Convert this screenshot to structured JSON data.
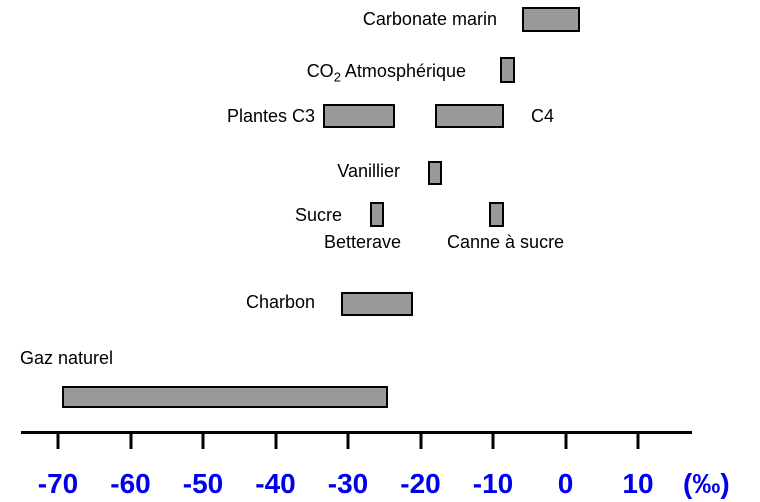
{
  "chart_data": {
    "type": "bar",
    "subtype": "horizontal-range-bars",
    "title": "",
    "xlabel": "(‰)",
    "axis": {
      "ticks": [
        -70,
        -60,
        -50,
        -40,
        -30,
        -20,
        -10,
        0,
        10
      ],
      "unit_label": "(‰)",
      "axis_line_value_span": [
        -75,
        17.5
      ],
      "grid": false
    },
    "items": [
      {
        "name": "carbonate-marin",
        "label": "Carbonate marin",
        "range_permil": [
          -6,
          2
        ]
      },
      {
        "name": "co2-atmospherique",
        "label_pre": "CO",
        "label_sub": "2",
        "label_post": " Atmosphérique",
        "range_permil": [
          -9,
          -7
        ]
      },
      {
        "name": "plantes-c3",
        "label": "Plantes C3",
        "range_permil": [
          -33.5,
          -23.5
        ]
      },
      {
        "name": "plantes-c4",
        "label": "C4",
        "range_permil": [
          -18,
          -8.5
        ]
      },
      {
        "name": "vanillier",
        "label": "Vanillier",
        "range_permil": [
          -19,
          -17
        ]
      },
      {
        "name": "sucre-betterave",
        "label": "Sucre",
        "sublabel": "Betterave",
        "range_permil": [
          -27,
          -25
        ]
      },
      {
        "name": "sucre-canne",
        "sublabel": "Canne à sucre",
        "range_permil": [
          -10.5,
          -8.5
        ]
      },
      {
        "name": "charbon",
        "label": "Charbon",
        "range_permil": [
          -31,
          -21
        ]
      },
      {
        "name": "gaz-naturel",
        "label": "Gaz naturel",
        "range_permil": [
          -69.5,
          -24.5
        ]
      }
    ]
  },
  "colors": {
    "background": "#FFFFFF",
    "bar_fill": "#999999",
    "bar_border": "#000000",
    "axis": "#000000",
    "tick_label": "#0000EE",
    "label_text": "#000000"
  }
}
